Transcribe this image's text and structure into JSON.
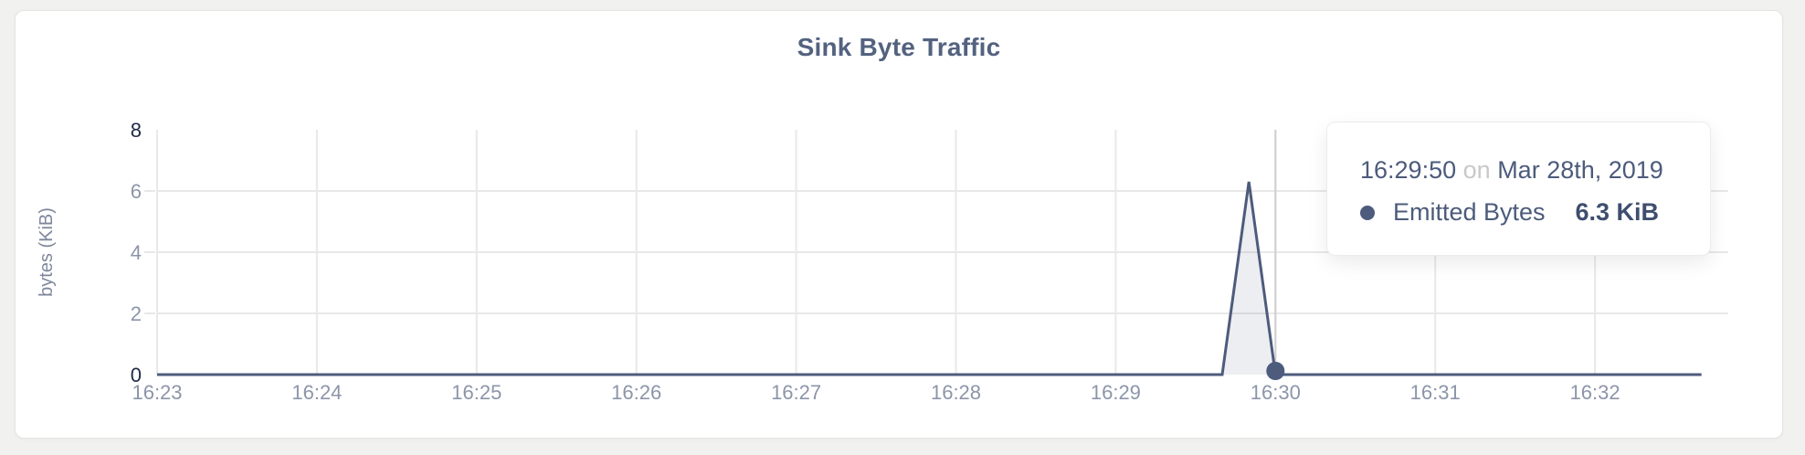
{
  "colors": {
    "page_bg": "#f1f1ef",
    "card_bg": "#ffffff",
    "title": "#53627f",
    "accent_line": "#4d5b7c",
    "area_fill": "rgba(77,91,124,0.10)",
    "grid": "#e8e8e8",
    "crosshair": "#cfcfcf",
    "tick_light": "#8c95a9",
    "tick_dark": "#212a47",
    "axis_label": "#7e879b",
    "tooltip_text": "#4c5b7b",
    "tooltip_value": "#3f4e6e",
    "tooltip_muted": "#c8c8c8"
  },
  "chart_data": {
    "type": "area",
    "title": "Sink Byte Traffic",
    "xlabel": "",
    "ylabel": "bytes (KiB)",
    "x_ticks": [
      "16:23",
      "16:24",
      "16:25",
      "16:26",
      "16:27",
      "16:28",
      "16:29",
      "16:30",
      "16:31",
      "16:32"
    ],
    "y_ticks": [
      0,
      2,
      4,
      6,
      8
    ],
    "ylim": [
      0,
      8
    ],
    "x_range": [
      "16:23:00",
      "16:32:40"
    ],
    "grid": true,
    "legend_position": "none",
    "series": [
      {
        "name": "Emitted Bytes",
        "points": [
          [
            "16:23:00",
            0
          ],
          [
            "16:29:40",
            0
          ],
          [
            "16:29:50",
            6.3
          ],
          [
            "16:30:00",
            0
          ],
          [
            "16:32:40",
            0
          ]
        ]
      }
    ],
    "hover": {
      "crosshair_time": "16:30:00",
      "marker_time": "16:30:00",
      "marker_value": 0
    }
  },
  "tooltip": {
    "time": "16:29:50",
    "connector": "on",
    "date": "Mar 28th, 2019",
    "series_label": "Emitted Bytes",
    "value": "6.3 KiB"
  }
}
